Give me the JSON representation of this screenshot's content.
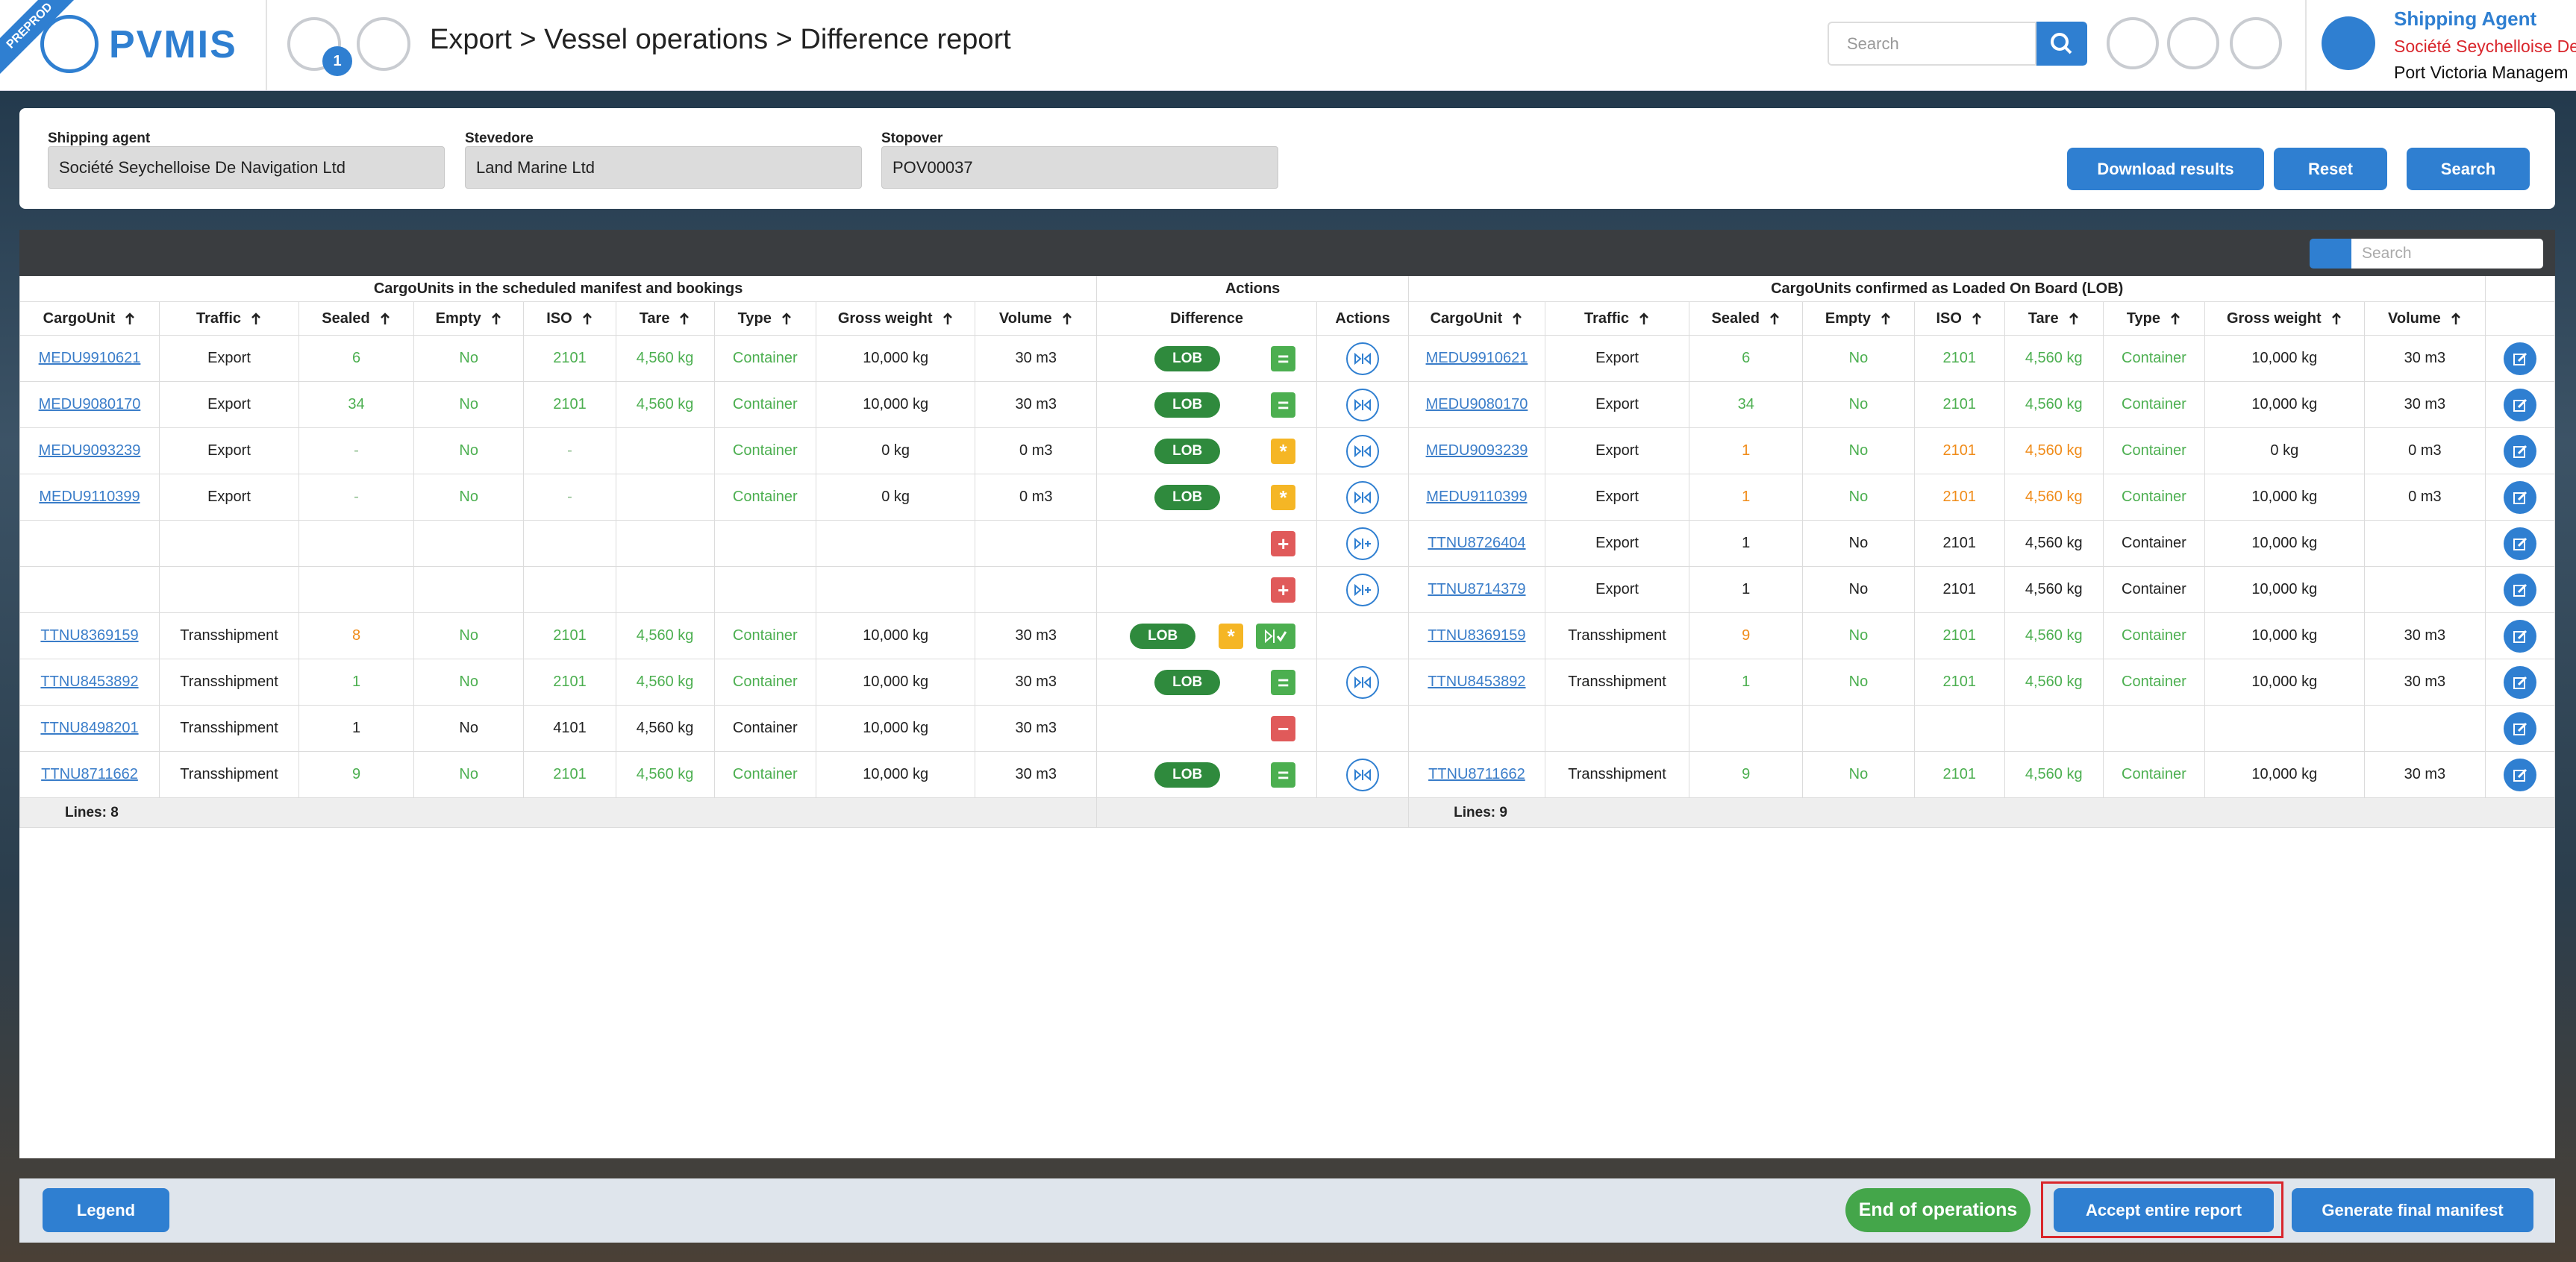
{
  "header": {
    "badge": "PREPROD",
    "logo": "PVMIS",
    "notifications": "1",
    "breadcrumb": "Export > Vessel operations > Difference report",
    "search_placeholder": "Search",
    "user_role": "Shipping Agent",
    "user_company": "Société Seychelloise De",
    "user_org": "Port Victoria Managem"
  },
  "filters": [
    {
      "label": "Shipping agent",
      "value": "Société Seychelloise De Navigation Ltd"
    },
    {
      "label": "Stevedore",
      "value": "Land Marine Ltd"
    },
    {
      "label": "Stopover",
      "value": "POV00037"
    }
  ],
  "filter_buttons": [
    "Download results",
    "Reset",
    "Search"
  ],
  "table": {
    "search_placeholder": "Search",
    "groups": [
      "CargoUnits in the scheduled manifest and bookings",
      "Actions",
      "CargoUnits confirmed as Loaded On Board (LOB)"
    ],
    "columns": [
      "CargoUnit",
      "Traffic",
      "Sealed",
      "Empty",
      "ISO",
      "Tare",
      "Type",
      "Gross weight",
      "Volume"
    ],
    "action_columns": [
      "Difference",
      "Actions"
    ],
    "rows": [
      {
        "left": [
          "MEDU9910621",
          "Export",
          "6",
          "No",
          "2101",
          "4,560 kg",
          "Container",
          "10,000 kg",
          "30 m3"
        ],
        "left_colors": [
          "#3a7dc9",
          "#222222",
          "#4caf50",
          "#4caf50",
          "#4caf50",
          "#4caf50",
          "#4caf50",
          "#222222",
          "#222222"
        ],
        "difference": {
          "lob": "LOB",
          "symbol": "=",
          "symbol_color": "#4caf50"
        },
        "action": "compare",
        "right": [
          "MEDU9910621",
          "Export",
          "6",
          "No",
          "2101",
          "4,560 kg",
          "Container",
          "10,000 kg",
          "30 m3"
        ],
        "right_colors": [
          "#3a7dc9",
          "#222222",
          "#4caf50",
          "#4caf50",
          "#4caf50",
          "#4caf50",
          "#4caf50",
          "#222222",
          "#222222"
        ]
      },
      {
        "left": [
          "MEDU9080170",
          "Export",
          "34",
          "No",
          "2101",
          "4,560 kg",
          "Container",
          "10,000 kg",
          "30 m3"
        ],
        "left_colors": [
          "#3a7dc9",
          "#222222",
          "#4caf50",
          "#4caf50",
          "#4caf50",
          "#4caf50",
          "#4caf50",
          "#222222",
          "#222222"
        ],
        "difference": {
          "lob": "LOB",
          "symbol": "=",
          "symbol_color": "#4caf50"
        },
        "action": "compare",
        "right": [
          "MEDU9080170",
          "Export",
          "34",
          "No",
          "2101",
          "4,560 kg",
          "Container",
          "10,000 kg",
          "30 m3"
        ],
        "right_colors": [
          "#3a7dc9",
          "#222222",
          "#4caf50",
          "#4caf50",
          "#4caf50",
          "#4caf50",
          "#4caf50",
          "#222222",
          "#222222"
        ]
      },
      {
        "left": [
          "MEDU9093239",
          "Export",
          "-",
          "No",
          "-",
          null,
          "Container",
          "0 kg",
          "0 m3"
        ],
        "left_colors": [
          "#3a7dc9",
          "#222222",
          "#8fbf8f",
          "#4caf50",
          "#8fbf8f",
          "#222222",
          "#4caf50",
          "#222222",
          "#222222"
        ],
        "difference": {
          "lob": "LOB",
          "symbol": "*",
          "symbol_color": "#f5b625"
        },
        "action": "compare",
        "right": [
          "MEDU9093239",
          "Export",
          "1",
          "No",
          "2101",
          "4,560 kg",
          "Container",
          "0 kg",
          "0 m3"
        ],
        "right_colors": [
          "#3a7dc9",
          "#222222",
          "#f08c1a",
          "#4caf50",
          "#f08c1a",
          "#f08c1a",
          "#4caf50",
          "#222222",
          "#222222"
        ]
      },
      {
        "left": [
          "MEDU9110399",
          "Export",
          "-",
          "No",
          "-",
          null,
          "Container",
          "0 kg",
          "0 m3"
        ],
        "left_colors": [
          "#3a7dc9",
          "#222222",
          "#8fbf8f",
          "#4caf50",
          "#8fbf8f",
          "#222222",
          "#4caf50",
          "#222222",
          "#222222"
        ],
        "difference": {
          "lob": "LOB",
          "symbol": "*",
          "symbol_color": "#f5b625"
        },
        "action": "compare",
        "right": [
          "MEDU9110399",
          "Export",
          "1",
          "No",
          "2101",
          "4,560 kg",
          "Container",
          "10,000 kg",
          "0 m3"
        ],
        "right_colors": [
          "#3a7dc9",
          "#222222",
          "#f08c1a",
          "#4caf50",
          "#f08c1a",
          "#f08c1a",
          "#4caf50",
          "#222222",
          "#222222"
        ]
      },
      {
        "left": null,
        "difference": {
          "symbol": "+",
          "symbol_color": "#e05a5a"
        },
        "action": "add",
        "right": [
          "TTNU8726404",
          "Export",
          "1",
          "No",
          "2101",
          "4,560 kg",
          "Container",
          "10,000 kg",
          null
        ],
        "right_colors": [
          "#3a7dc9",
          "#222222",
          "#222222",
          "#222222",
          "#222222",
          "#222222",
          "#222222",
          "#222222",
          "#222222"
        ]
      },
      {
        "left": null,
        "difference": {
          "symbol": "+",
          "symbol_color": "#e05a5a"
        },
        "action": "add",
        "right": [
          "TTNU8714379",
          "Export",
          "1",
          "No",
          "2101",
          "4,560 kg",
          "Container",
          "10,000 kg",
          null
        ],
        "right_colors": [
          "#3a7dc9",
          "#222222",
          "#222222",
          "#222222",
          "#222222",
          "#222222",
          "#222222",
          "#222222",
          "#222222"
        ]
      },
      {
        "left": [
          "TTNU8369159",
          "Transshipment",
          "8",
          "No",
          "2101",
          "4,560 kg",
          "Container",
          "10,000 kg",
          "30 m3"
        ],
        "left_colors": [
          "#3a7dc9",
          "#222222",
          "#f08c1a",
          "#4caf50",
          "#4caf50",
          "#4caf50",
          "#4caf50",
          "#222222",
          "#222222"
        ],
        "difference": {
          "lob": "LOB",
          "symbol": "*",
          "symbol_color": "#f5b625",
          "validate_color": "#4caf50"
        },
        "right": [
          "TTNU8369159",
          "Transshipment",
          "9",
          "No",
          "2101",
          "4,560 kg",
          "Container",
          "10,000 kg",
          "30 m3"
        ],
        "right_colors": [
          "#3a7dc9",
          "#222222",
          "#f08c1a",
          "#4caf50",
          "#4caf50",
          "#4caf50",
          "#4caf50",
          "#222222",
          "#222222"
        ]
      },
      {
        "left": [
          "TTNU8453892",
          "Transshipment",
          "1",
          "No",
          "2101",
          "4,560 kg",
          "Container",
          "10,000 kg",
          "30 m3"
        ],
        "left_colors": [
          "#3a7dc9",
          "#222222",
          "#4caf50",
          "#4caf50",
          "#4caf50",
          "#4caf50",
          "#4caf50",
          "#222222",
          "#222222"
        ],
        "difference": {
          "lob": "LOB",
          "symbol": "=",
          "symbol_color": "#4caf50"
        },
        "action": "compare",
        "right": [
          "TTNU8453892",
          "Transshipment",
          "1",
          "No",
          "2101",
          "4,560 kg",
          "Container",
          "10,000 kg",
          "30 m3"
        ],
        "right_colors": [
          "#3a7dc9",
          "#222222",
          "#4caf50",
          "#4caf50",
          "#4caf50",
          "#4caf50",
          "#4caf50",
          "#222222",
          "#222222"
        ]
      },
      {
        "left": [
          "TTNU8498201",
          "Transshipment",
          "1",
          "No",
          "4101",
          "4,560 kg",
          "Container",
          "10,000 kg",
          "30 m3"
        ],
        "left_colors": [
          "#3a7dc9",
          "#222222",
          "#222222",
          "#222222",
          "#222222",
          "#222222",
          "#222222",
          "#222222",
          "#222222"
        ],
        "difference": {
          "symbol": "−",
          "symbol_color": "#e05a5a"
        },
        "right": null
      },
      {
        "left": [
          "TTNU8711662",
          "Transshipment",
          "9",
          "No",
          "2101",
          "4,560 kg",
          "Container",
          "10,000 kg",
          "30 m3"
        ],
        "left_colors": [
          "#3a7dc9",
          "#222222",
          "#4caf50",
          "#4caf50",
          "#4caf50",
          "#4caf50",
          "#4caf50",
          "#222222",
          "#222222"
        ],
        "difference": {
          "lob": "LOB",
          "symbol": "=",
          "symbol_color": "#4caf50"
        },
        "action": "compare",
        "right": [
          "TTNU8711662",
          "Transshipment",
          "9",
          "No",
          "2101",
          "4,560 kg",
          "Container",
          "10,000 kg",
          "30 m3"
        ],
        "right_colors": [
          "#3a7dc9",
          "#222222",
          "#4caf50",
          "#4caf50",
          "#4caf50",
          "#4caf50",
          "#4caf50",
          "#222222",
          "#222222"
        ]
      }
    ],
    "footer": {
      "left": "Lines: 8",
      "right": "Lines: 9"
    }
  },
  "bottom_buttons": {
    "legend": "Legend",
    "end": "End of operations",
    "accept": "Accept entire report",
    "generate": "Generate final manifest"
  }
}
